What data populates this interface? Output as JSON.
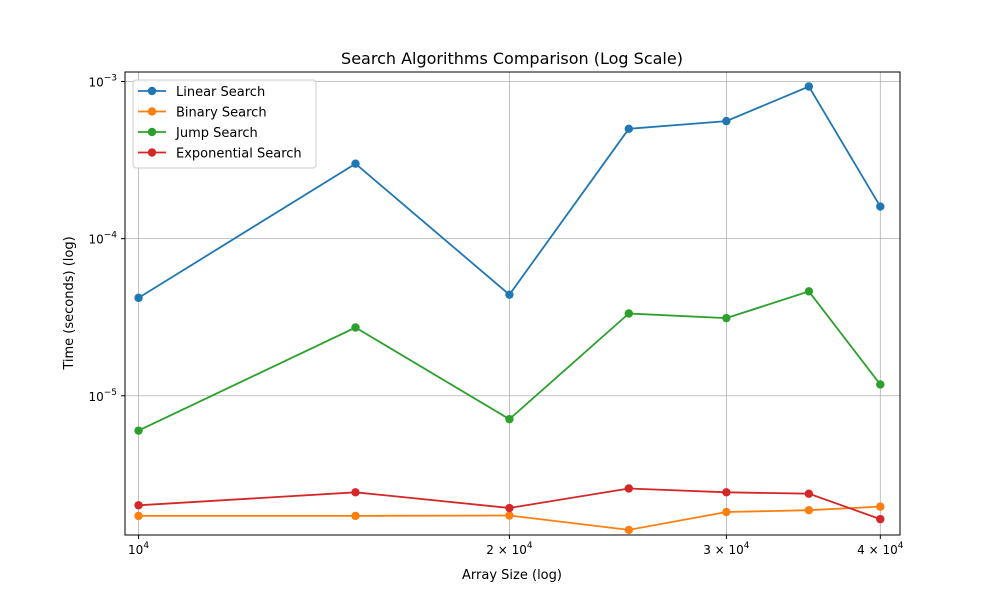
{
  "chart_data": {
    "type": "line",
    "title": "Search Algorithms Comparison (Log Scale)",
    "xlabel": "Array Size (log)",
    "ylabel": "Time (seconds) (log)",
    "xscale": "log",
    "yscale": "log",
    "xlim": [
      9750,
      41500
    ],
    "ylim": [
      1.3e-06,
      0.00115
    ],
    "grid": true,
    "legend_position": "upper-left",
    "x": [
      10000,
      15000,
      20000,
      25000,
      30000,
      35000,
      40000
    ],
    "x_ticks": [
      {
        "value": 10000,
        "mantissa": "",
        "base": "10",
        "exp": "4"
      },
      {
        "value": 20000,
        "mantissa": "2 × ",
        "base": "10",
        "exp": "4"
      },
      {
        "value": 30000,
        "mantissa": "3 × ",
        "base": "10",
        "exp": "4"
      },
      {
        "value": 40000,
        "mantissa": "4 × ",
        "base": "10",
        "exp": "4"
      }
    ],
    "y_ticks": [
      {
        "value": 1e-05,
        "base": "10",
        "exp": "−5"
      },
      {
        "value": 0.0001,
        "base": "10",
        "exp": "−4"
      },
      {
        "value": 0.001,
        "base": "10",
        "exp": "−3"
      }
    ],
    "series": [
      {
        "name": "Linear Search",
        "color": "#1f77b4",
        "values": [
          4.2e-05,
          0.0003,
          4.4e-05,
          0.0005,
          0.00056,
          0.00093,
          0.00016
        ]
      },
      {
        "name": "Binary Search",
        "color": "#ff7f0e",
        "values": [
          1.72e-06,
          1.72e-06,
          1.73e-06,
          1.4e-06,
          1.82e-06,
          1.87e-06,
          1.97e-06
        ]
      },
      {
        "name": "Jump Search",
        "color": "#2ca02c",
        "values": [
          6e-06,
          2.72e-05,
          7.1e-06,
          3.34e-05,
          3.12e-05,
          4.62e-05,
          1.18e-05
        ]
      },
      {
        "name": "Exponential Search",
        "color": "#d62728",
        "values": [
          2.01e-06,
          2.43e-06,
          1.93e-06,
          2.57e-06,
          2.43e-06,
          2.38e-06,
          1.64e-06
        ]
      }
    ]
  }
}
